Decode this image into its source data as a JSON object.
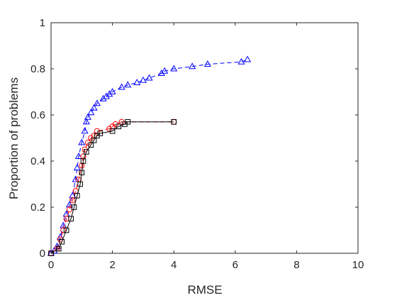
{
  "chart_data": {
    "type": "line",
    "xlabel": "RMSE",
    "ylabel": "Proportion of problems",
    "xlim": [
      0,
      10
    ],
    "ylim": [
      0,
      1
    ],
    "xticks": [
      "0",
      "2",
      "4",
      "6",
      "8",
      "10"
    ],
    "yticks": [
      "0",
      "0.2",
      "0.4",
      "0.6",
      "0.8",
      "1"
    ],
    "grid": false,
    "series": [
      {
        "color": "#0000ff",
        "marker": "triangle",
        "linestyle": "dashed",
        "points": [
          [
            0.0,
            0.0
          ],
          [
            0.1,
            0.01
          ],
          [
            0.2,
            0.03
          ],
          [
            0.3,
            0.07
          ],
          [
            0.4,
            0.12
          ],
          [
            0.5,
            0.17
          ],
          [
            0.6,
            0.21
          ],
          [
            0.7,
            0.25
          ],
          [
            0.8,
            0.32
          ],
          [
            0.85,
            0.37
          ],
          [
            0.9,
            0.42
          ],
          [
            1.0,
            0.48
          ],
          [
            1.1,
            0.53
          ],
          [
            1.15,
            0.57
          ],
          [
            1.2,
            0.59
          ],
          [
            1.3,
            0.61
          ],
          [
            1.4,
            0.63
          ],
          [
            1.5,
            0.65
          ],
          [
            1.7,
            0.67
          ],
          [
            1.8,
            0.68
          ],
          [
            1.9,
            0.69
          ],
          [
            2.0,
            0.7
          ],
          [
            2.3,
            0.72
          ],
          [
            2.5,
            0.73
          ],
          [
            2.8,
            0.74
          ],
          [
            3.0,
            0.75
          ],
          [
            3.2,
            0.76
          ],
          [
            3.6,
            0.78
          ],
          [
            3.7,
            0.79
          ],
          [
            4.0,
            0.8
          ],
          [
            4.6,
            0.81
          ],
          [
            5.1,
            0.82
          ],
          [
            6.2,
            0.83
          ],
          [
            6.4,
            0.84
          ]
        ]
      },
      {
        "color": "#ff0000",
        "marker": "circle",
        "linestyle": "dashed",
        "points": [
          [
            0.0,
            0.0
          ],
          [
            0.2,
            0.02
          ],
          [
            0.3,
            0.06
          ],
          [
            0.4,
            0.1
          ],
          [
            0.5,
            0.15
          ],
          [
            0.6,
            0.19
          ],
          [
            0.7,
            0.23
          ],
          [
            0.8,
            0.27
          ],
          [
            0.9,
            0.32
          ],
          [
            1.0,
            0.38
          ],
          [
            1.05,
            0.42
          ],
          [
            1.1,
            0.45
          ],
          [
            1.2,
            0.48
          ],
          [
            1.3,
            0.5
          ],
          [
            1.4,
            0.51
          ],
          [
            1.5,
            0.53
          ],
          [
            1.9,
            0.54
          ],
          [
            2.0,
            0.55
          ],
          [
            2.1,
            0.56
          ],
          [
            2.3,
            0.57
          ],
          [
            4.0,
            0.57
          ]
        ]
      },
      {
        "color": "#000000",
        "marker": "square",
        "linestyle": "solid",
        "points": [
          [
            0.0,
            0.0
          ],
          [
            0.25,
            0.02
          ],
          [
            0.35,
            0.05
          ],
          [
            0.5,
            0.1
          ],
          [
            0.65,
            0.15
          ],
          [
            0.75,
            0.2
          ],
          [
            0.85,
            0.25
          ],
          [
            0.95,
            0.3
          ],
          [
            1.0,
            0.35
          ],
          [
            1.05,
            0.4
          ],
          [
            1.15,
            0.44
          ],
          [
            1.3,
            0.47
          ],
          [
            1.4,
            0.49
          ],
          [
            1.5,
            0.51
          ],
          [
            1.6,
            0.52
          ],
          [
            2.0,
            0.53
          ],
          [
            2.2,
            0.55
          ],
          [
            2.4,
            0.56
          ],
          [
            2.5,
            0.57
          ],
          [
            4.0,
            0.57
          ]
        ]
      }
    ]
  }
}
